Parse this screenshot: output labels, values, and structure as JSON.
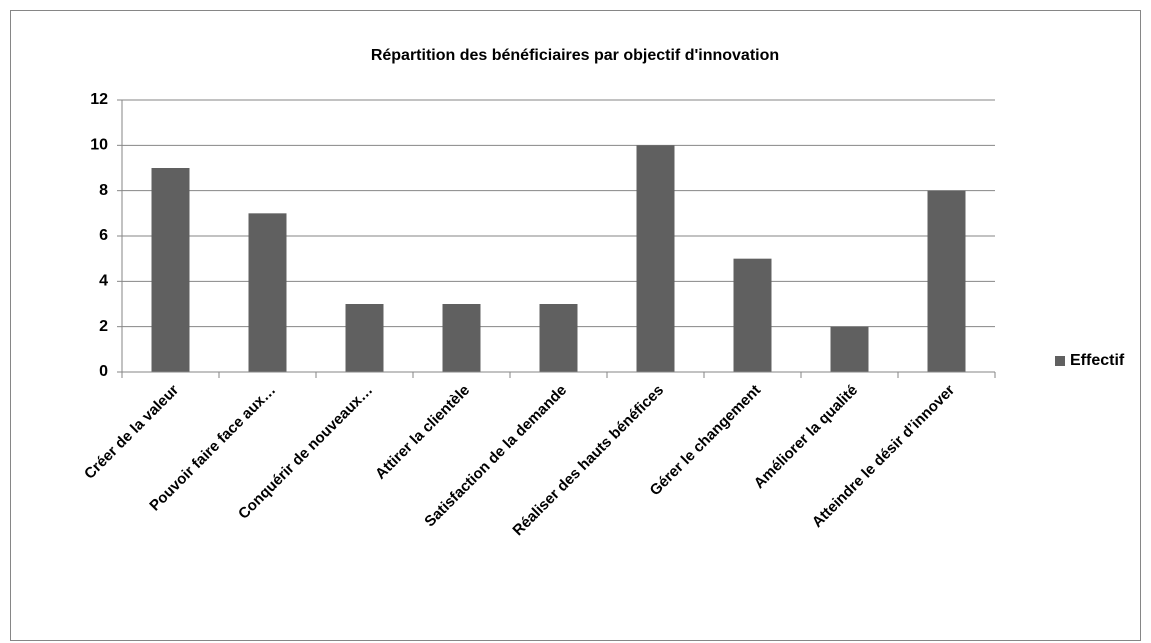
{
  "chart_data": {
    "type": "bar",
    "title": "Répartition des bénéficiaires par objectif d'innovation",
    "categories": [
      "Créer de la valeur",
      "Pouvoir faire face aux…",
      "Conquérir de nouveaux…",
      "Attirer la clientèle",
      "Satisfaction de la demande",
      "Réaliser des hauts bénéfices",
      "Gérer le changement",
      "Améliorer la qualité",
      "Atteindre le désir d’innover"
    ],
    "series": [
      {
        "name": "Effectif",
        "color": "#606060",
        "values": [
          9,
          7,
          3,
          3,
          3,
          10,
          5,
          2,
          8
        ]
      }
    ],
    "ylim": [
      0,
      12
    ],
    "yticks": [
      0,
      2,
      4,
      6,
      8,
      10,
      12
    ],
    "grid": true,
    "legend": "right"
  }
}
